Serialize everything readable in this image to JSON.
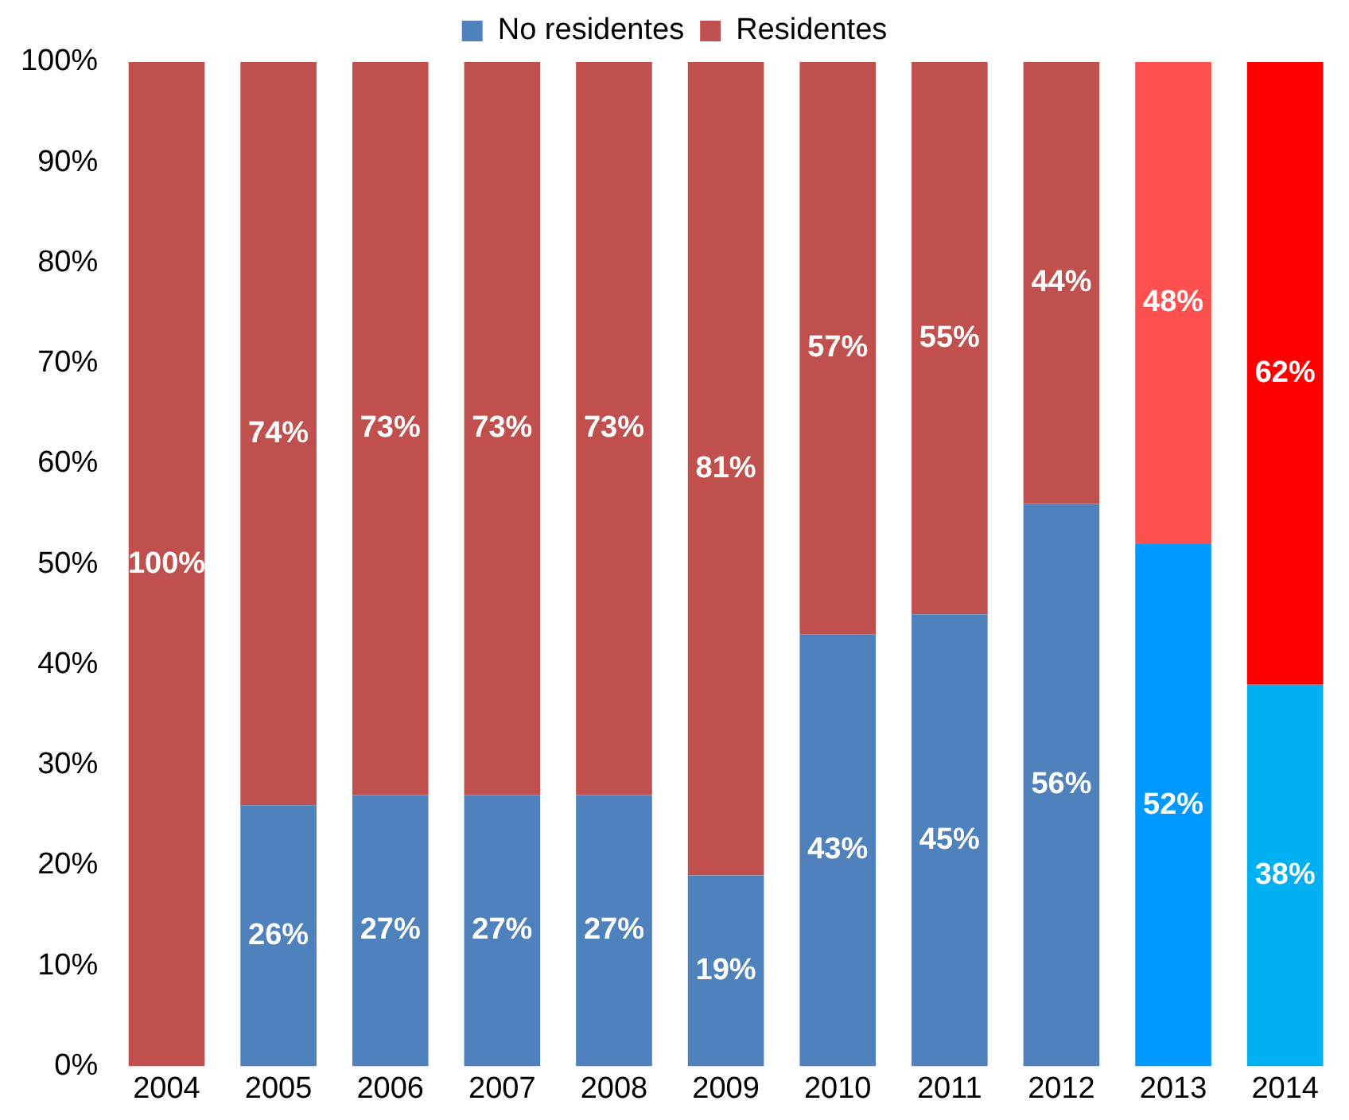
{
  "chart_data": {
    "type": "bar",
    "stacked": true,
    "legend": "top",
    "grid": false,
    "categories": [
      "2004",
      "2005",
      "2006",
      "2007",
      "2008",
      "2009",
      "2010",
      "2011",
      "2012",
      "2013",
      "2014"
    ],
    "ylim": [
      0,
      100
    ],
    "yticks": [
      {
        "value": 0,
        "label": "0%"
      },
      {
        "value": 10,
        "label": "10%"
      },
      {
        "value": 20,
        "label": "20%"
      },
      {
        "value": 30,
        "label": "30%"
      },
      {
        "value": 40,
        "label": "40%"
      },
      {
        "value": 50,
        "label": "50%"
      },
      {
        "value": 60,
        "label": "60%"
      },
      {
        "value": 70,
        "label": "70%"
      },
      {
        "value": 80,
        "label": "80%"
      },
      {
        "value": 90,
        "label": "90%"
      },
      {
        "value": 100,
        "label": "100%"
      }
    ],
    "series": [
      {
        "name": "No residentes",
        "color": "#4f81bd",
        "colors": [
          "#4f81bd",
          "#4f81bd",
          "#4f81bd",
          "#4f81bd",
          "#4f81bd",
          "#4f81bd",
          "#4f81bd",
          "#4f81bd",
          "#4f81bd",
          "#0099ff",
          "#00b0f0"
        ],
        "values": [
          0,
          26,
          27,
          27,
          27,
          19,
          43,
          45,
          56,
          52,
          38
        ],
        "value_labels": [
          null,
          "26%",
          "27%",
          "27%",
          "27%",
          "19%",
          "43%",
          "45%",
          "56%",
          "52%",
          "38%"
        ]
      },
      {
        "name": "Residentes",
        "color": "#c0504d",
        "colors": [
          "#c0504d",
          "#c0504d",
          "#c0504d",
          "#c0504d",
          "#c0504d",
          "#c0504d",
          "#c0504d",
          "#c0504d",
          "#c0504d",
          "#ff5050",
          "#ff0000"
        ],
        "values": [
          100,
          74,
          73,
          73,
          73,
          81,
          57,
          55,
          44,
          48,
          62
        ],
        "value_labels": [
          "100%",
          "74%",
          "73%",
          "73%",
          "73%",
          "81%",
          "57%",
          "55%",
          "44%",
          "48%",
          "62%"
        ]
      }
    ]
  }
}
